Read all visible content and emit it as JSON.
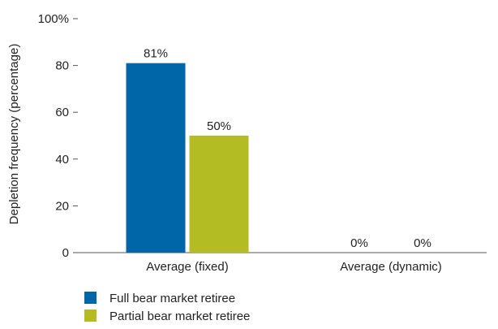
{
  "chart_data": {
    "type": "bar",
    "title": "",
    "xlabel": "",
    "ylabel": "Depletion frequency (percentage)",
    "ylim": [
      0,
      100
    ],
    "yticks": [
      0,
      20,
      40,
      60,
      80,
      100
    ],
    "ytick_labels": [
      "0",
      "20",
      "40",
      "60",
      "80",
      "100%"
    ],
    "categories": [
      "Average (fixed)",
      "Average (dynamic)"
    ],
    "series": [
      {
        "name": "Full bear market retiree",
        "color": "#0066a8",
        "values": [
          81,
          0
        ],
        "labels": [
          "81%",
          "0%"
        ]
      },
      {
        "name": "Partial bear market retiree",
        "color": "#b3bd23",
        "values": [
          50,
          0
        ],
        "labels": [
          "50%",
          "0%"
        ]
      }
    ],
    "grid": false,
    "legend_position": "bottom-left"
  }
}
